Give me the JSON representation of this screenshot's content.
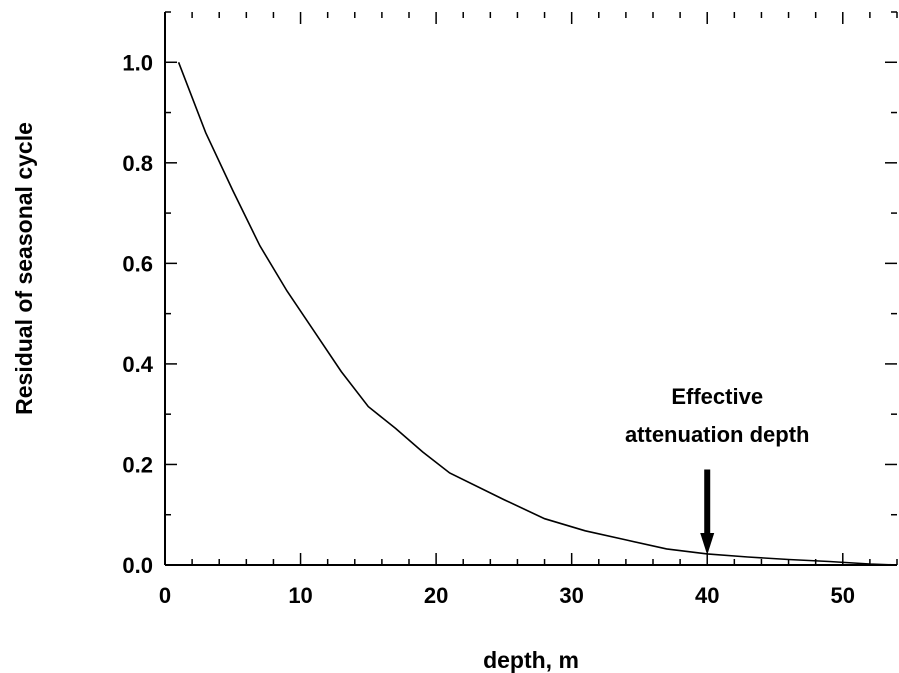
{
  "chart_data": {
    "type": "line",
    "xlabel": "depth, m",
    "ylabel": "Residual of seasonal cycle",
    "xlim": [
      0,
      54
    ],
    "ylim": [
      0,
      1.1
    ],
    "x_ticks": [
      0,
      10,
      20,
      30,
      40,
      50
    ],
    "x_tick_labels": [
      "0",
      "10",
      "20",
      "30",
      "40",
      "50"
    ],
    "x_minor_step": 2,
    "y_ticks": [
      0.0,
      0.2,
      0.4,
      0.6,
      0.8,
      1.0
    ],
    "y_tick_labels": [
      "0.0",
      "0.2",
      "0.4",
      "0.6",
      "0.8",
      "1.0"
    ],
    "y_minor_step": 0.1,
    "grid": false,
    "series": [
      {
        "x": [
          1,
          3,
          5,
          7,
          9,
          11,
          13,
          15,
          17,
          19,
          21,
          25,
          28,
          31,
          34,
          37,
          40,
          43,
          46,
          49,
          52,
          54
        ],
        "y": [
          1.0,
          0.86,
          0.745,
          0.635,
          0.545,
          0.465,
          0.385,
          0.315,
          0.272,
          0.225,
          0.183,
          0.13,
          0.092,
          0.068,
          0.05,
          0.032,
          0.022,
          0.016,
          0.011,
          0.007,
          0.002,
          0.0
        ]
      }
    ],
    "annotation": {
      "lines": [
        "Effective",
        "attenuation depth"
      ],
      "arrow_x": 40,
      "arrow_y_tip": 0.02,
      "arrow_y_tail": 0.19
    }
  }
}
